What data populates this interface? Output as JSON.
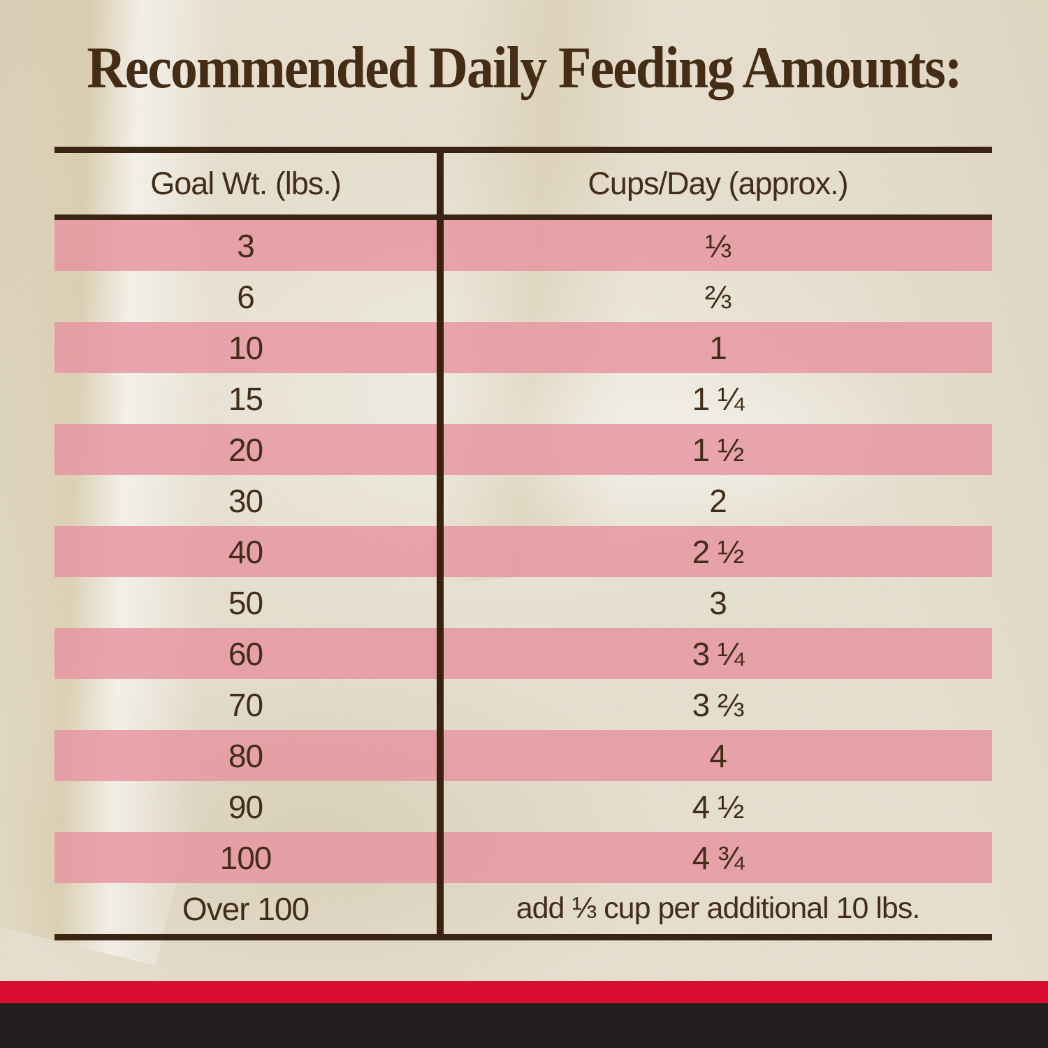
{
  "title": "Recommended Daily Feeding Amounts:",
  "chart_data": {
    "type": "table",
    "title": "Recommended Daily Feeding Amounts:",
    "columns": [
      "Goal Wt. (lbs.)",
      "Cups/Day (approx.)"
    ],
    "rows": [
      {
        "goal_wt": "3",
        "cups": "⅓",
        "striped": true
      },
      {
        "goal_wt": "6",
        "cups": "⅔",
        "striped": false
      },
      {
        "goal_wt": "10",
        "cups": "1",
        "striped": true
      },
      {
        "goal_wt": "15",
        "cups": "1 ¼",
        "striped": false
      },
      {
        "goal_wt": "20",
        "cups": "1 ½",
        "striped": true
      },
      {
        "goal_wt": "30",
        "cups": "2",
        "striped": false
      },
      {
        "goal_wt": "40",
        "cups": "2 ½",
        "striped": true
      },
      {
        "goal_wt": "50",
        "cups": "3",
        "striped": false
      },
      {
        "goal_wt": "60",
        "cups": "3 ¼",
        "striped": true
      },
      {
        "goal_wt": "70",
        "cups": "3 ⅔",
        "striped": false
      },
      {
        "goal_wt": "80",
        "cups": "4",
        "striped": true
      },
      {
        "goal_wt": "90",
        "cups": "4 ½",
        "striped": false
      },
      {
        "goal_wt": "100",
        "cups": "4 ¾",
        "striped": true
      },
      {
        "goal_wt": "Over 100",
        "cups": "add ⅓ cup per additional 10 lbs.",
        "striped": false
      }
    ],
    "layout": {
      "stripe_style": "alternating pink bands starting on first data row",
      "grid": "single vertical divider between the two columns, heavy top/bottom/header rules"
    }
  },
  "colors": {
    "text_brown": "#422d18",
    "rule_brown": "#3a2414",
    "stripe_pink": "#e9a3ad",
    "fabric_beige": "#e8e1d1",
    "footer_red": "#d90e31",
    "footer_black": "#231f20"
  }
}
